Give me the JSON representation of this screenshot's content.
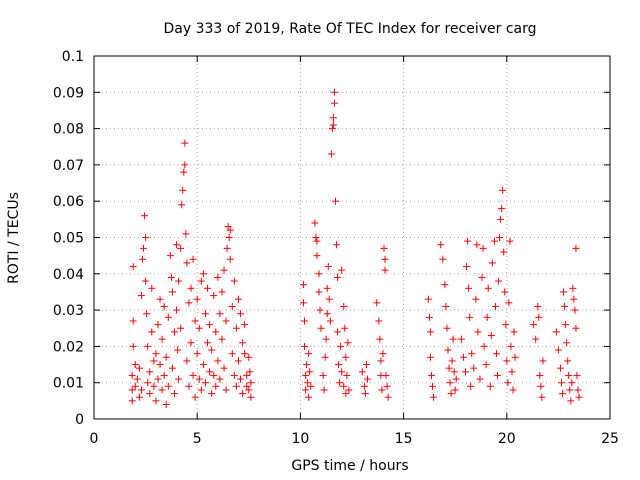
{
  "chart_data": {
    "type": "scatter",
    "title": "Day 333 of 2019, Rate Of TEC Index for receiver carg",
    "xlabel": "GPS time / hours",
    "ylabel": "ROTI / TECUs",
    "xlim": [
      0,
      25
    ],
    "ylim": [
      0,
      0.1
    ],
    "grid": true,
    "marker": "+",
    "color": "#ff0000",
    "x_ticks": [
      0,
      5,
      10,
      15,
      20,
      25
    ],
    "x_tick_labels": [
      "0",
      "5",
      "10",
      "15",
      "20",
      "25"
    ],
    "y_ticks": [
      0,
      0.01,
      0.02,
      0.03,
      0.04,
      0.05,
      0.06,
      0.07,
      0.08,
      0.09,
      0.1
    ],
    "y_tick_labels": [
      "0",
      "0.01",
      "0.02",
      "0.03",
      "0.04",
      "0.05",
      "0.06",
      "0.07",
      "0.08",
      "0.09",
      "0.1"
    ],
    "series": [
      {
        "name": "ROTI",
        "points": [
          [
            1.85,
            0.005
          ],
          [
            1.85,
            0.008
          ],
          [
            1.85,
            0.012
          ],
          [
            1.9,
            0.02
          ],
          [
            1.9,
            0.042
          ],
          [
            1.9,
            0.027
          ],
          [
            2.0,
            0.009
          ],
          [
            2.0,
            0.015
          ],
          [
            2.1,
            0.011
          ],
          [
            2.2,
            0.006
          ],
          [
            2.2,
            0.014
          ],
          [
            2.3,
            0.008
          ],
          [
            2.3,
            0.034
          ],
          [
            2.35,
            0.044
          ],
          [
            2.4,
            0.047
          ],
          [
            2.45,
            0.056
          ],
          [
            2.5,
            0.05
          ],
          [
            2.5,
            0.038
          ],
          [
            2.55,
            0.029
          ],
          [
            2.6,
            0.02
          ],
          [
            2.6,
            0.01
          ],
          [
            2.7,
            0.007
          ],
          [
            2.7,
            0.013
          ],
          [
            2.8,
            0.036
          ],
          [
            2.8,
            0.024
          ],
          [
            2.9,
            0.016
          ],
          [
            2.9,
            0.009
          ],
          [
            3.0,
            0.005
          ],
          [
            3.0,
            0.018
          ],
          [
            3.1,
            0.026
          ],
          [
            3.1,
            0.011
          ],
          [
            3.2,
            0.033
          ],
          [
            3.2,
            0.015
          ],
          [
            3.3,
            0.008
          ],
          [
            3.3,
            0.022
          ],
          [
            3.4,
            0.031
          ],
          [
            3.4,
            0.012
          ],
          [
            3.5,
            0.004
          ],
          [
            3.5,
            0.017
          ],
          [
            3.6,
            0.009
          ],
          [
            3.6,
            0.028
          ],
          [
            3.7,
            0.045
          ],
          [
            3.75,
            0.039
          ],
          [
            3.8,
            0.035
          ],
          [
            3.8,
            0.014
          ],
          [
            3.9,
            0.024
          ],
          [
            3.9,
            0.007
          ],
          [
            4.0,
            0.048
          ],
          [
            4.0,
            0.03
          ],
          [
            4.05,
            0.019
          ],
          [
            4.1,
            0.038
          ],
          [
            4.1,
            0.011
          ],
          [
            4.2,
            0.047
          ],
          [
            4.2,
            0.025
          ],
          [
            4.25,
            0.059
          ],
          [
            4.3,
            0.063
          ],
          [
            4.35,
            0.068
          ],
          [
            4.4,
            0.07
          ],
          [
            4.4,
            0.076
          ],
          [
            4.45,
            0.051
          ],
          [
            4.5,
            0.043
          ],
          [
            4.5,
            0.016
          ],
          [
            4.6,
            0.032
          ],
          [
            4.6,
            0.009
          ],
          [
            4.7,
            0.021
          ],
          [
            4.7,
            0.036
          ],
          [
            4.8,
            0.012
          ],
          [
            4.8,
            0.044
          ],
          [
            4.9,
            0.027
          ],
          [
            4.9,
            0.006
          ],
          [
            5.0,
            0.018
          ],
          [
            5.0,
            0.033
          ],
          [
            5.1,
            0.011
          ],
          [
            5.1,
            0.025
          ],
          [
            5.2,
            0.038
          ],
          [
            5.2,
            0.008
          ],
          [
            5.3,
            0.04
          ],
          [
            5.3,
            0.015
          ],
          [
            5.4,
            0.029
          ],
          [
            5.4,
            0.01
          ],
          [
            5.5,
            0.036
          ],
          [
            5.5,
            0.021
          ],
          [
            5.6,
            0.013
          ],
          [
            5.6,
            0.026
          ],
          [
            5.7,
            0.007
          ],
          [
            5.7,
            0.019
          ],
          [
            5.8,
            0.034
          ],
          [
            5.8,
            0.012
          ],
          [
            5.9,
            0.024
          ],
          [
            5.9,
            0.009
          ],
          [
            6.0,
            0.039
          ],
          [
            6.0,
            0.016
          ],
          [
            6.1,
            0.029
          ],
          [
            6.1,
            0.011
          ],
          [
            6.2,
            0.022
          ],
          [
            6.2,
            0.035
          ],
          [
            6.3,
            0.014
          ],
          [
            6.3,
            0.041
          ],
          [
            6.4,
            0.008
          ],
          [
            6.4,
            0.027
          ],
          [
            6.45,
            0.047
          ],
          [
            6.5,
            0.053
          ],
          [
            6.55,
            0.05
          ],
          [
            6.6,
            0.052
          ],
          [
            6.6,
            0.044
          ],
          [
            6.7,
            0.031
          ],
          [
            6.7,
            0.018
          ],
          [
            6.8,
            0.038
          ],
          [
            6.8,
            0.012
          ],
          [
            6.9,
            0.025
          ],
          [
            6.9,
            0.009
          ],
          [
            7.0,
            0.033
          ],
          [
            7.0,
            0.016
          ],
          [
            7.1,
            0.029
          ],
          [
            7.1,
            0.011
          ],
          [
            7.2,
            0.021
          ],
          [
            7.2,
            0.007
          ],
          [
            7.3,
            0.018
          ],
          [
            7.3,
            0.026
          ],
          [
            7.4,
            0.012
          ],
          [
            7.4,
            0.009
          ],
          [
            7.5,
            0.017
          ],
          [
            7.5,
            0.008
          ],
          [
            7.55,
            0.013
          ],
          [
            7.6,
            0.01
          ],
          [
            7.6,
            0.006
          ],
          [
            10.15,
            0.037
          ],
          [
            10.15,
            0.032
          ],
          [
            10.2,
            0.027
          ],
          [
            10.2,
            0.02
          ],
          [
            10.25,
            0.012
          ],
          [
            10.25,
            0.008
          ],
          [
            10.3,
            0.015
          ],
          [
            10.35,
            0.01
          ],
          [
            10.4,
            0.006
          ],
          [
            10.4,
            0.018
          ],
          [
            10.45,
            0.013
          ],
          [
            10.5,
            0.009
          ],
          [
            10.7,
            0.054
          ],
          [
            10.75,
            0.05
          ],
          [
            10.8,
            0.049
          ],
          [
            10.8,
            0.045
          ],
          [
            10.9,
            0.04
          ],
          [
            10.9,
            0.035
          ],
          [
            10.95,
            0.03
          ],
          [
            11.0,
            0.025
          ],
          [
            11.1,
            0.012
          ],
          [
            11.15,
            0.008
          ],
          [
            11.2,
            0.017
          ],
          [
            11.25,
            0.022
          ],
          [
            11.3,
            0.029
          ],
          [
            11.3,
            0.036
          ],
          [
            11.35,
            0.042
          ],
          [
            11.4,
            0.033
          ],
          [
            11.45,
            0.027
          ],
          [
            11.5,
            0.073
          ],
          [
            11.55,
            0.08
          ],
          [
            11.6,
            0.081
          ],
          [
            11.6,
            0.083
          ],
          [
            11.65,
            0.087
          ],
          [
            11.65,
            0.09
          ],
          [
            11.7,
            0.06
          ],
          [
            11.75,
            0.048
          ],
          [
            11.8,
            0.039
          ],
          [
            11.8,
            0.024
          ],
          [
            11.85,
            0.015
          ],
          [
            11.9,
            0.01
          ],
          [
            11.95,
            0.02
          ],
          [
            12.0,
            0.041
          ],
          [
            12.0,
            0.013
          ],
          [
            12.1,
            0.031
          ],
          [
            12.1,
            0.009
          ],
          [
            12.15,
            0.025
          ],
          [
            12.2,
            0.017
          ],
          [
            12.2,
            0.007
          ],
          [
            12.25,
            0.012
          ],
          [
            12.3,
            0.021
          ],
          [
            12.35,
            0.008
          ],
          [
            13.0,
            0.013
          ],
          [
            13.1,
            0.009
          ],
          [
            13.15,
            0.007
          ],
          [
            13.2,
            0.015
          ],
          [
            13.25,
            0.011
          ],
          [
            13.7,
            0.032
          ],
          [
            13.8,
            0.027
          ],
          [
            13.85,
            0.022
          ],
          [
            13.9,
            0.016
          ],
          [
            13.9,
            0.012
          ],
          [
            13.95,
            0.008
          ],
          [
            14.0,
            0.018
          ],
          [
            14.05,
            0.047
          ],
          [
            14.1,
            0.044
          ],
          [
            14.1,
            0.041
          ],
          [
            14.15,
            0.012
          ],
          [
            14.2,
            0.009
          ],
          [
            14.25,
            0.006
          ],
          [
            16.2,
            0.033
          ],
          [
            16.25,
            0.028
          ],
          [
            16.3,
            0.024
          ],
          [
            16.3,
            0.017
          ],
          [
            16.35,
            0.012
          ],
          [
            16.4,
            0.009
          ],
          [
            16.45,
            0.006
          ],
          [
            16.8,
            0.048
          ],
          [
            16.9,
            0.044
          ],
          [
            17.0,
            0.037
          ],
          [
            17.05,
            0.031
          ],
          [
            17.1,
            0.025
          ],
          [
            17.15,
            0.019
          ],
          [
            17.2,
            0.014
          ],
          [
            17.25,
            0.01
          ],
          [
            17.3,
            0.007
          ],
          [
            17.35,
            0.016
          ],
          [
            17.4,
            0.022
          ],
          [
            17.45,
            0.013
          ],
          [
            17.5,
            0.008
          ],
          [
            17.55,
            0.011
          ],
          [
            17.8,
            0.022
          ],
          [
            17.9,
            0.017
          ],
          [
            18.0,
            0.013
          ],
          [
            18.05,
            0.042
          ],
          [
            18.1,
            0.049
          ],
          [
            18.15,
            0.036
          ],
          [
            18.2,
            0.028
          ],
          [
            18.25,
            0.009
          ],
          [
            18.3,
            0.018
          ],
          [
            18.4,
            0.014
          ],
          [
            18.5,
            0.033
          ],
          [
            18.55,
            0.048
          ],
          [
            18.6,
            0.024
          ],
          [
            18.7,
            0.011
          ],
          [
            18.8,
            0.039
          ],
          [
            18.85,
            0.047
          ],
          [
            18.9,
            0.02
          ],
          [
            19.0,
            0.015
          ],
          [
            19.05,
            0.028
          ],
          [
            19.1,
            0.036
          ],
          [
            19.2,
            0.009
          ],
          [
            19.25,
            0.023
          ],
          [
            19.3,
            0.043
          ],
          [
            19.4,
            0.049
          ],
          [
            19.45,
            0.031
          ],
          [
            19.5,
            0.018
          ],
          [
            19.55,
            0.012
          ],
          [
            19.6,
            0.038
          ],
          [
            19.65,
            0.05
          ],
          [
            19.7,
            0.055
          ],
          [
            19.75,
            0.058
          ],
          [
            19.8,
            0.063
          ],
          [
            19.85,
            0.046
          ],
          [
            19.9,
            0.035
          ],
          [
            19.95,
            0.026
          ],
          [
            20.0,
            0.016
          ],
          [
            20.05,
            0.01
          ],
          [
            20.1,
            0.032
          ],
          [
            20.15,
            0.049
          ],
          [
            20.2,
            0.02
          ],
          [
            20.25,
            0.013
          ],
          [
            20.3,
            0.008
          ],
          [
            20.35,
            0.024
          ],
          [
            20.4,
            0.017
          ],
          [
            21.3,
            0.026
          ],
          [
            21.4,
            0.022
          ],
          [
            21.5,
            0.031
          ],
          [
            21.55,
            0.028
          ],
          [
            21.6,
            0.012
          ],
          [
            21.65,
            0.009
          ],
          [
            21.7,
            0.006
          ],
          [
            21.75,
            0.016
          ],
          [
            22.4,
            0.024
          ],
          [
            22.5,
            0.019
          ],
          [
            22.6,
            0.014
          ],
          [
            22.65,
            0.01
          ],
          [
            22.7,
            0.007
          ],
          [
            22.75,
            0.035
          ],
          [
            22.8,
            0.031
          ],
          [
            22.85,
            0.026
          ],
          [
            22.9,
            0.021
          ],
          [
            22.95,
            0.016
          ],
          [
            23.0,
            0.012
          ],
          [
            23.05,
            0.008
          ],
          [
            23.1,
            0.005
          ],
          [
            23.15,
            0.01
          ],
          [
            23.2,
            0.036
          ],
          [
            23.25,
            0.033
          ],
          [
            23.3,
            0.03
          ],
          [
            23.35,
            0.025
          ],
          [
            23.35,
            0.047
          ],
          [
            23.4,
            0.012
          ],
          [
            23.45,
            0.008
          ],
          [
            23.5,
            0.006
          ]
        ]
      }
    ]
  }
}
